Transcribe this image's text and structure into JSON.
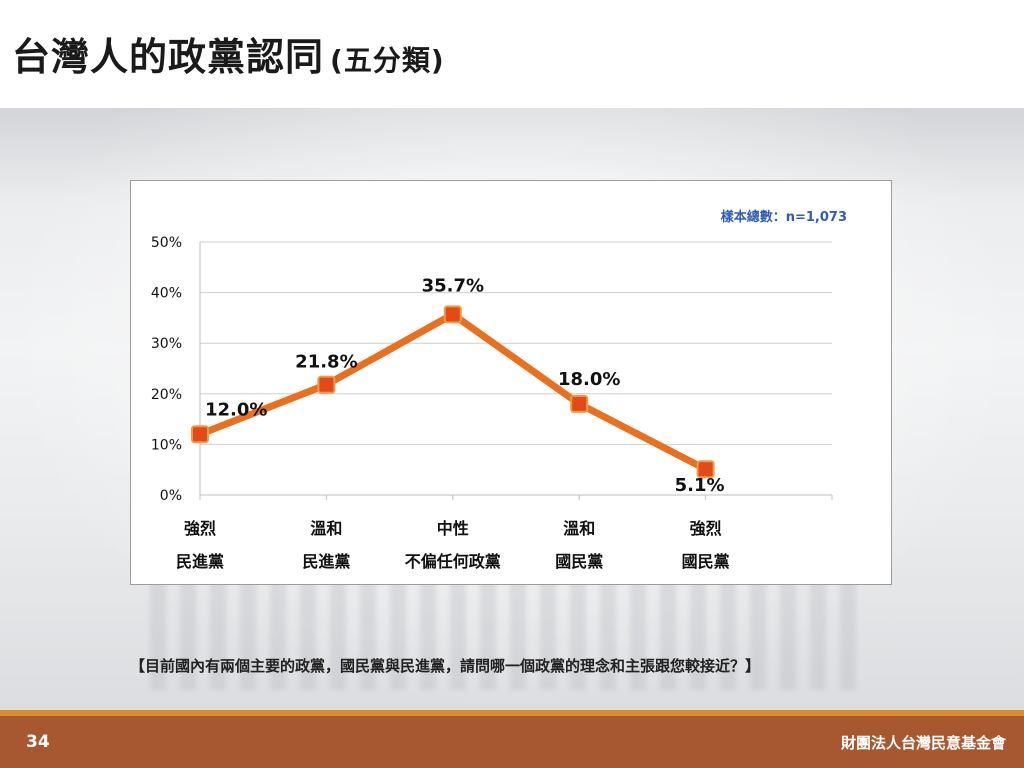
{
  "slide": {
    "title": "台灣人的政黨認同",
    "title_sub": "(五分類)",
    "question": "【目前國內有兩個主要的政黨，國民黨與民進黨，請問哪一個政黨的理念和主張跟您較接近？】",
    "page_number": "34",
    "organization": "財團法人台灣民意基金會"
  },
  "chart_data": {
    "type": "line",
    "annotation": "樣本總數：n=1,073",
    "categories": [
      [
        "強烈",
        "民進黨"
      ],
      [
        "溫和",
        "民進黨"
      ],
      [
        "中性",
        "不偏任何政黨"
      ],
      [
        "溫和",
        "國民黨"
      ],
      [
        "強烈",
        "國民黨"
      ]
    ],
    "values": [
      12.0,
      21.8,
      35.7,
      18.0,
      5.1
    ],
    "data_labels": [
      "12.0%",
      "21.8%",
      "35.7%",
      "18.0%",
      "5.1%"
    ],
    "y_ticks": [
      "0%",
      "10%",
      "20%",
      "30%",
      "40%",
      "50%"
    ],
    "ylim": [
      0,
      50
    ],
    "grid": true,
    "legend": "none",
    "colors": {
      "line": "#e8701e",
      "marker_fill": "#e24a18",
      "marker_edge": "#ee9a46",
      "grid": "#cfcfcf",
      "axis": "#bfbfbf"
    }
  }
}
